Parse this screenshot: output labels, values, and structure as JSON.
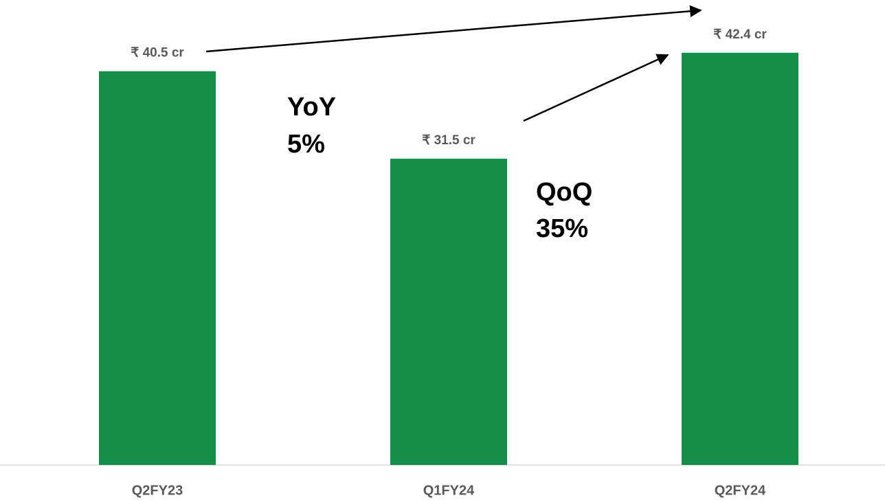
{
  "chart_data": {
    "type": "bar",
    "categories": [
      "Q2FY23",
      "Q1FY24",
      "Q2FY24"
    ],
    "values": [
      40.5,
      31.5,
      42.4
    ],
    "value_labels": [
      "₹ 40.5 cr",
      "₹ 31.5 cr",
      "₹ 42.4 cr"
    ],
    "color": "#138f4a",
    "ylim": [
      0,
      45
    ],
    "annotations": [
      {
        "label": "YoY",
        "value": "5%"
      },
      {
        "label": "QoQ",
        "value": "35%"
      }
    ]
  }
}
